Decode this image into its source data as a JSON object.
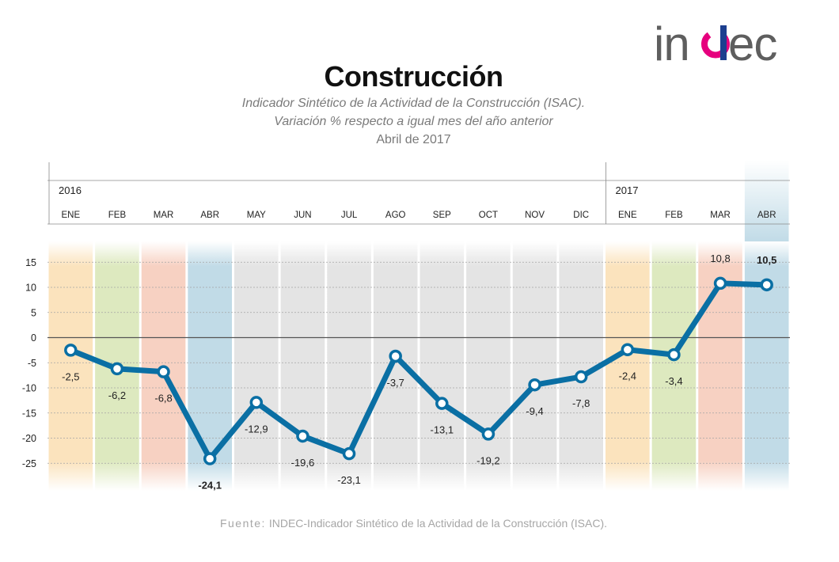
{
  "header": {
    "title": "Construcción",
    "subtitle_1": "Indicador Sintético de la Actividad de la Construcción (ISAC).",
    "subtitle_2": "Variación % respecto a igual mes del año anterior",
    "date": "Abril de 2017"
  },
  "logo": {
    "text": "indec",
    "colors": [
      "#5e5e5e",
      "#e6007e",
      "#1d3f8f",
      "#00a0e3"
    ]
  },
  "footer": {
    "source_label": "Fuente:",
    "source_text": "INDEC-Indicador Sintético de la Actividad de la Construcción (ISAC)."
  },
  "chart_data": {
    "type": "line",
    "years": [
      {
        "label": "2016",
        "start": 0
      },
      {
        "label": "2017",
        "start": 12
      }
    ],
    "categories": [
      "ENE",
      "FEB",
      "MAR",
      "ABR",
      "MAY",
      "JUN",
      "JUL",
      "AGO",
      "SEP",
      "OCT",
      "NOV",
      "DIC",
      "ENE",
      "FEB",
      "MAR",
      "ABR"
    ],
    "series": [
      {
        "values": [
          -2.5,
          -6.2,
          -6.8,
          -24.1,
          -12.9,
          -19.6,
          -23.1,
          -3.7,
          -13.1,
          -19.2,
          -9.4,
          -7.8,
          -2.4,
          -3.4,
          10.8,
          10.5
        ],
        "labels": [
          "-2,5",
          "-6,2",
          "-6,8",
          "-24,1",
          "-12,9",
          "-19,6",
          "-23,1",
          "-3,7",
          "-13,1",
          "-19,2",
          "-9,4",
          "-7,8",
          "-2,4",
          "-3,4",
          "10,8",
          "10,5"
        ],
        "bold_labels": [
          3,
          15
        ],
        "color": "#0a6fa4"
      }
    ],
    "yticks": [
      15,
      10,
      5,
      0,
      -5,
      -10,
      -15,
      -20,
      -25
    ],
    "ylim": [
      -25,
      15
    ],
    "highlight_index": 15,
    "column_colors": [
      "#fbe3bd",
      "#dde9bf",
      "#f7d1c2",
      "#c1dbe7",
      "#e4e4e4",
      "#e4e4e4",
      "#e4e4e4",
      "#e4e4e4",
      "#e4e4e4",
      "#e4e4e4",
      "#e4e4e4",
      "#e4e4e4",
      "#fbe3bd",
      "#dde9bf",
      "#f7d1c2",
      "#c1dbe7"
    ],
    "grid": true
  }
}
